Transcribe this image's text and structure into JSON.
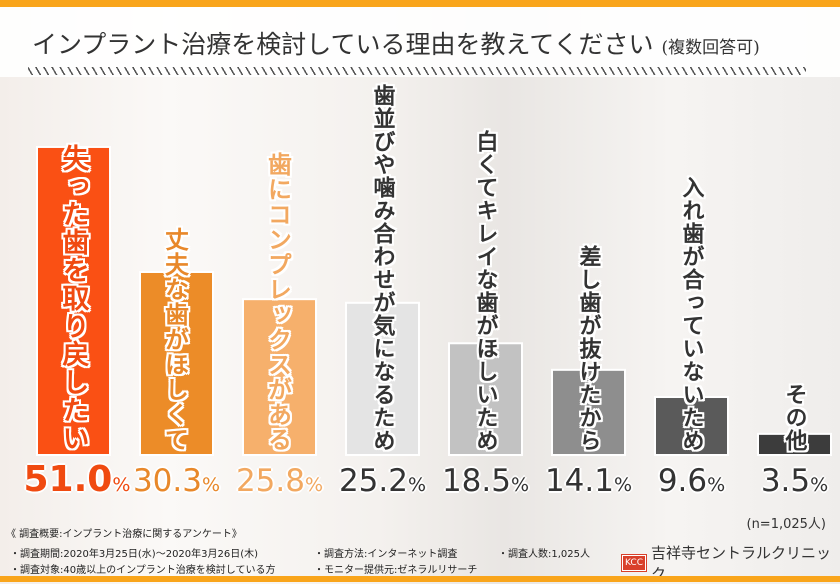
{
  "title": "インプラント治療を検討している理由を教えてください",
  "title_note": "(複数回答可)",
  "chart_data": {
    "type": "bar",
    "categories": [
      "失った歯を取り戻したい",
      "丈夫な歯がほしくて",
      "歯にコンプレックスがある",
      "歯並びや噛み合わせが気になるため",
      "白くてキレイな歯がほしいため",
      "差し歯が抜けたから",
      "入れ歯が合っていないため",
      "その他"
    ],
    "values": [
      51.0,
      30.3,
      25.8,
      25.2,
      18.5,
      14.1,
      9.6,
      3.5
    ],
    "value_labels": [
      "51.0",
      "30.3",
      "25.8",
      "25.2",
      "18.5",
      "14.1",
      "9.6",
      "3.5"
    ],
    "unit": "%",
    "ylim": [
      0,
      55
    ],
    "colors": [
      "#fa5014",
      "#ec8c28",
      "#f6b06c",
      "#e4e4e4",
      "#c2c2c2",
      "#8e8e8e",
      "#5a5a5a",
      "#3c3c3c"
    ],
    "label_colors": [
      "#f04a10",
      "#e8882a",
      "#f2a860",
      "#333333",
      "#333333",
      "#333333",
      "#333333",
      "#333333"
    ],
    "grid": false
  },
  "sample": "(n=1,025人)",
  "notes": {
    "heading": "《 調査概要:インプラント治療に関するアンケート》",
    "period": "・調査期間:2020年3月25日(水)～2020年3月26日(木)",
    "target": "・調査対象:40歳以上のインプラント治療を検討している方",
    "method": "・調査方法:インターネット調査",
    "provider": "・モニター提供元:ゼネラルリサーチ",
    "count": "・調査人数:1,025人"
  },
  "logo": {
    "mark": "KCC",
    "name": "吉祥寺セントラルクリニック"
  }
}
